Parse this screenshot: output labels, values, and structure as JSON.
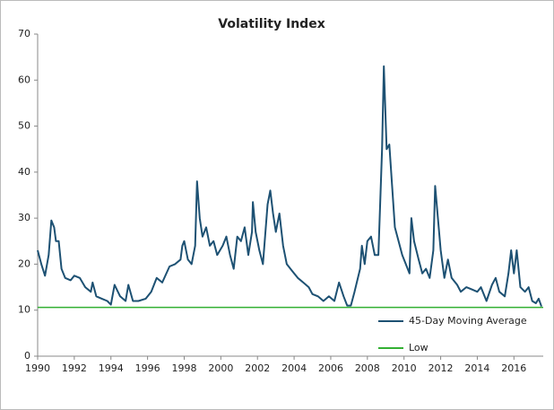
{
  "chart_data": {
    "type": "line",
    "title": "Volatility Index",
    "x": [
      1990.0,
      1990.2,
      1990.4,
      1990.6,
      1990.75,
      1990.9,
      1991.0,
      1991.15,
      1991.3,
      1991.5,
      1991.8,
      1992.0,
      1992.3,
      1992.6,
      1992.9,
      1993.0,
      1993.2,
      1993.5,
      1993.8,
      1994.0,
      1994.2,
      1994.5,
      1994.8,
      1994.95,
      1995.2,
      1995.5,
      1995.9,
      1996.2,
      1996.5,
      1996.8,
      1997.2,
      1997.5,
      1997.8,
      1997.9,
      1998.0,
      1998.2,
      1998.4,
      1998.6,
      1998.7,
      1998.85,
      1999.0,
      1999.2,
      1999.4,
      1999.6,
      1999.8,
      2000.1,
      2000.3,
      2000.5,
      2000.7,
      2000.9,
      2001.1,
      2001.3,
      2001.5,
      2001.7,
      2001.75,
      2001.9,
      2002.1,
      2002.3,
      2002.55,
      2002.7,
      2002.85,
      2003.0,
      2003.2,
      2003.4,
      2003.6,
      2003.9,
      2004.2,
      2004.5,
      2004.8,
      2005.0,
      2005.3,
      2005.6,
      2005.9,
      2006.2,
      2006.45,
      2006.7,
      2006.9,
      2007.1,
      2007.3,
      2007.6,
      2007.7,
      2007.85,
      2008.0,
      2008.2,
      2008.4,
      2008.6,
      2008.8,
      2008.9,
      2009.05,
      2009.2,
      2009.35,
      2009.5,
      2009.7,
      2009.9,
      2010.1,
      2010.3,
      2010.4,
      2010.55,
      2010.8,
      2011.0,
      2011.2,
      2011.4,
      2011.6,
      2011.7,
      2011.85,
      2012.0,
      2012.2,
      2012.4,
      2012.6,
      2012.9,
      2013.1,
      2013.4,
      2013.7,
      2014.0,
      2014.2,
      2014.5,
      2014.8,
      2015.0,
      2015.2,
      2015.5,
      2015.7,
      2015.85,
      2016.0,
      2016.15,
      2016.35,
      2016.6,
      2016.8,
      2017.0,
      2017.2,
      2017.35,
      2017.5
    ],
    "series": [
      {
        "name": "45-Day Moving Average",
        "color": "#1d5173",
        "values": [
          23,
          20,
          17.5,
          22,
          29.5,
          28,
          25,
          25,
          19,
          17,
          16.5,
          17.5,
          17,
          15,
          14,
          16,
          13,
          12.5,
          12,
          11.2,
          15.5,
          13,
          12,
          15.5,
          12,
          12,
          12.5,
          14,
          17,
          16,
          19.5,
          20,
          21,
          24,
          25,
          21,
          20,
          24,
          38,
          30,
          26,
          28,
          24,
          25,
          22,
          24,
          26,
          22,
          19,
          26,
          25,
          28,
          22,
          27,
          33.5,
          27,
          23,
          20,
          33,
          36,
          31,
          27,
          31,
          24,
          20,
          18.5,
          17,
          16,
          15,
          13.5,
          13,
          12,
          13,
          12,
          16,
          13,
          11,
          11,
          14,
          19,
          24,
          20,
          25,
          26,
          22,
          22,
          45,
          63,
          45,
          46,
          37,
          28,
          25,
          22,
          20,
          18,
          30,
          25,
          21,
          18,
          19,
          17,
          23,
          37,
          30,
          23,
          17,
          21,
          17,
          15.5,
          14,
          15,
          14.5,
          14,
          15,
          12,
          15.5,
          17,
          14,
          13,
          18,
          23,
          18,
          23,
          15,
          14,
          15,
          12,
          11.5,
          12.5,
          10.8
        ]
      }
    ],
    "low": {
      "name": "Low",
      "color": "#33b033",
      "value": 10.6
    },
    "xlim": [
      1990,
      2017.6
    ],
    "ylim": [
      0,
      70
    ],
    "xticks": [
      1990,
      1992,
      1994,
      1996,
      1998,
      2000,
      2002,
      2004,
      2006,
      2008,
      2010,
      2012,
      2014,
      2016
    ],
    "yticks": [
      0,
      10,
      20,
      30,
      40,
      50,
      60,
      70
    ],
    "grid": false,
    "legend": "lower right"
  }
}
